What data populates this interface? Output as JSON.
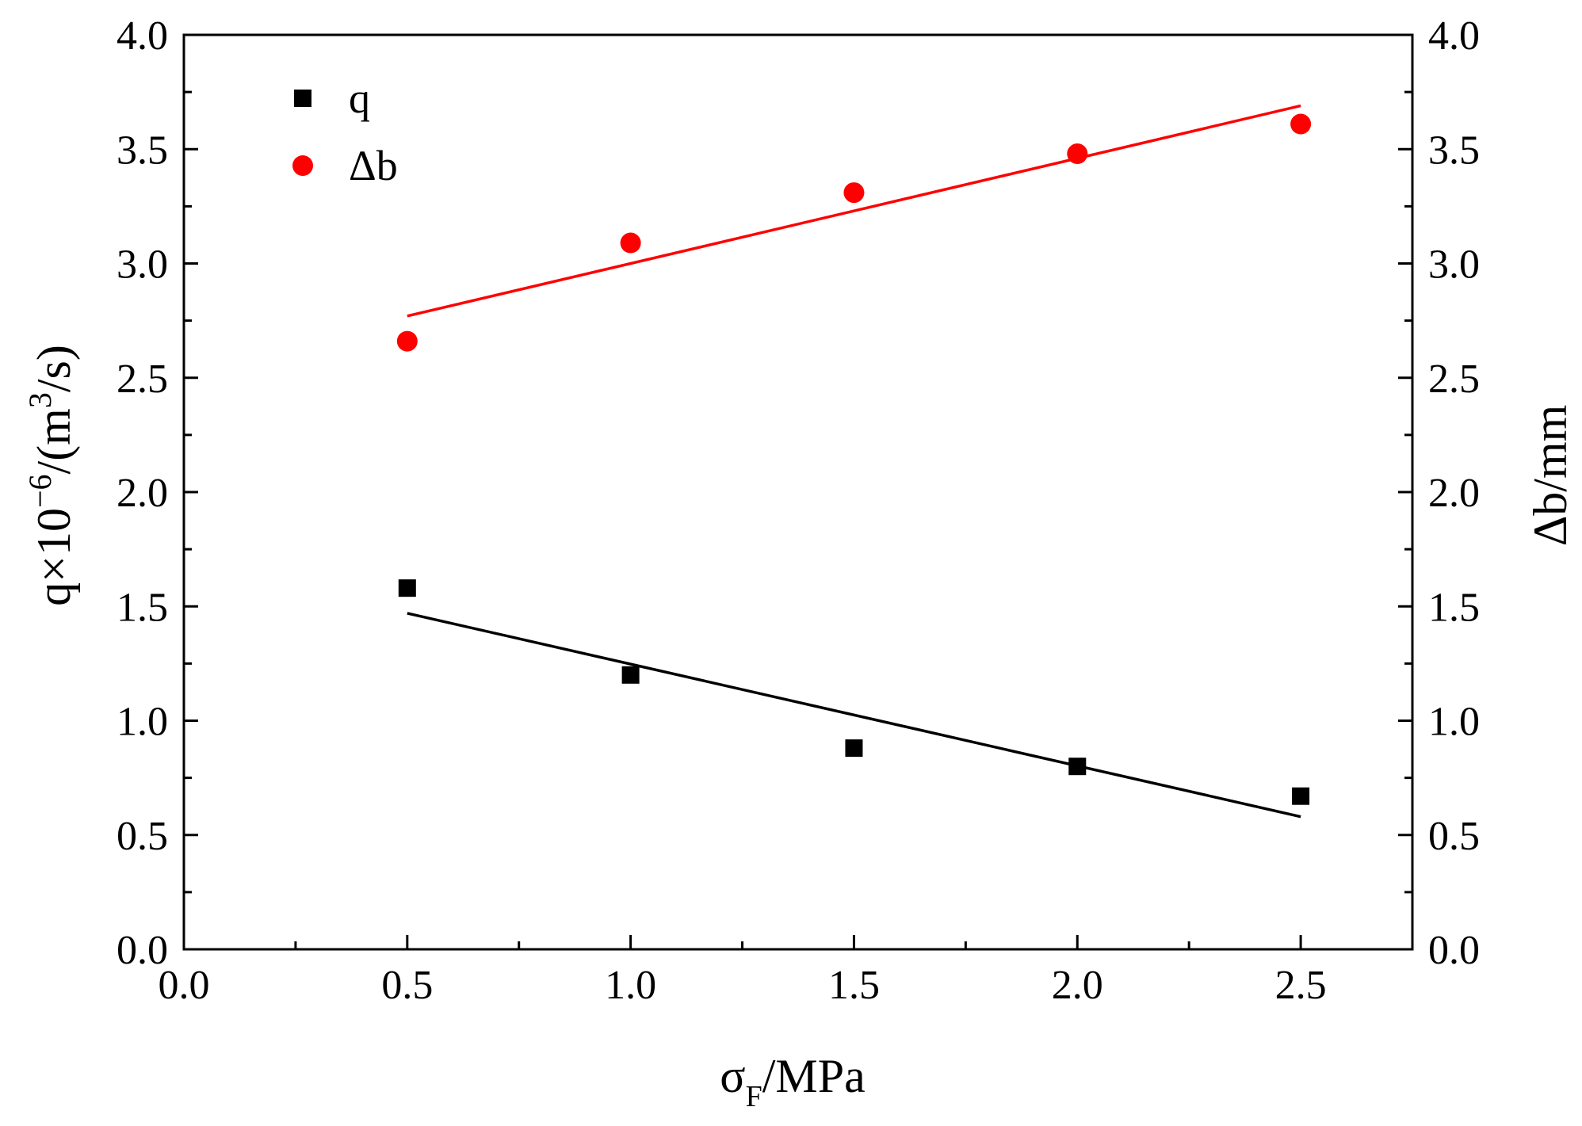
{
  "chart_data": {
    "type": "scatter",
    "title": "",
    "xlabel": {
      "main": "σ",
      "sub": "F",
      "rest": "/MPa"
    },
    "ylabel_left": {
      "pre": "q×10",
      "sup1": "−6",
      "mid": "/(m",
      "sup2": "3",
      "post": "/s)"
    },
    "ylabel_right": "Δb/mm",
    "xlim": [
      0.0,
      2.75
    ],
    "ylim_left": [
      0.0,
      4.0
    ],
    "ylim_right": [
      0.0,
      4.0
    ],
    "x_ticks": [
      "0.0",
      "0.5",
      "1.0",
      "1.5",
      "2.0",
      "2.5"
    ],
    "y_ticks_left": [
      "0.0",
      "0.5",
      "1.0",
      "1.5",
      "2.0",
      "2.5",
      "3.0",
      "3.5",
      "4.0"
    ],
    "y_ticks_right": [
      "0.0",
      "0.5",
      "1.0",
      "1.5",
      "2.0",
      "2.5",
      "3.0",
      "3.5",
      "4.0"
    ],
    "grid": false,
    "legend_position": "top-left",
    "series": [
      {
        "name": "q",
        "axis": "left",
        "marker": "square",
        "color": "#000000",
        "x": [
          0.5,
          1.0,
          1.5,
          2.0,
          2.5
        ],
        "y": [
          1.58,
          1.2,
          0.88,
          0.8,
          0.67
        ],
        "fit": {
          "x": [
            0.5,
            2.5
          ],
          "y": [
            1.47,
            0.58
          ]
        }
      },
      {
        "name": "Δb",
        "axis": "right",
        "marker": "circle",
        "color": "#ff0000",
        "x": [
          0.5,
          1.0,
          1.5,
          2.0,
          2.5
        ],
        "y": [
          2.66,
          3.09,
          3.31,
          3.48,
          3.61
        ],
        "fit": {
          "x": [
            0.5,
            2.5
          ],
          "y": [
            2.77,
            3.69
          ]
        }
      }
    ]
  }
}
